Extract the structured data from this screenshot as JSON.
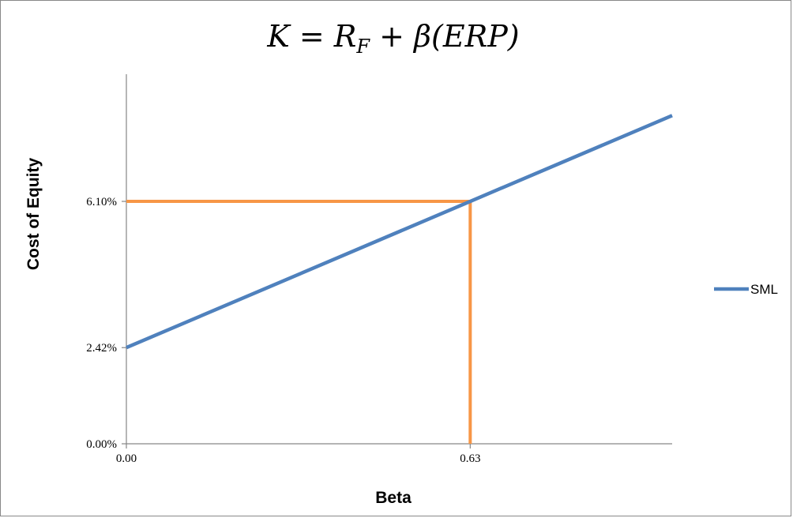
{
  "chart_data": {
    "type": "line",
    "title": {
      "main_k": "K",
      "eq": " = ",
      "main_r": "R",
      "sub_f": "F",
      "rest": " + β(ERP)"
    },
    "xlabel": "Beta",
    "ylabel": "Cost of Equity",
    "xlim": [
      0,
      1.0
    ],
    "ylim": [
      0,
      0.093
    ],
    "x_ticks": [
      {
        "value": 0,
        "label": "0.00"
      },
      {
        "value": 0.63,
        "label": "0.63"
      }
    ],
    "y_ticks": [
      {
        "value": 0,
        "label": "0.00%"
      },
      {
        "value": 0.0242,
        "label": "2.42%"
      },
      {
        "value": 0.061,
        "label": "6.10%"
      }
    ],
    "series": [
      {
        "name": "SML",
        "color": "#4F81BD",
        "points": [
          [
            0,
            0.0242
          ],
          [
            0.63,
            0.061
          ],
          [
            1.0,
            0.0826
          ]
        ]
      }
    ],
    "reference_lines": {
      "color": "#F79646",
      "x": 0.63,
      "y": 0.061
    },
    "legend": {
      "position": "right",
      "items": [
        {
          "label": "SML",
          "color": "#4F81BD"
        }
      ]
    },
    "grid": false
  }
}
